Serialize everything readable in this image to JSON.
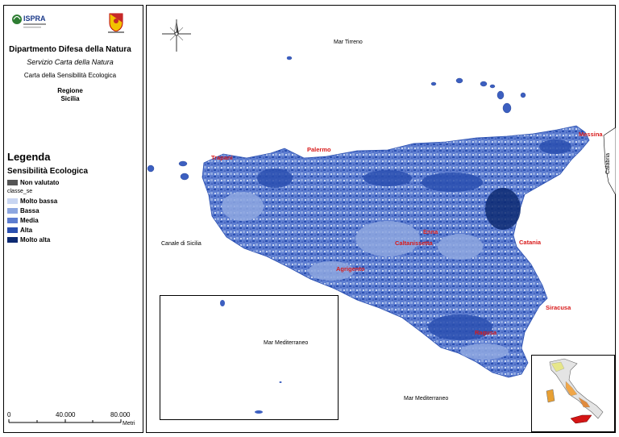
{
  "header": {
    "department": "Dipartmento Difesa della Natura",
    "service": "Servizio Carta della Natura",
    "map_title": "Carta della Sensibilità Ecologica",
    "region_label": "Regione",
    "region_name": "Sicilia",
    "ispra_logo_text": "ISPRA",
    "region_logo_text": "Regione Siciliana"
  },
  "legend": {
    "title": "Legenda",
    "subtitle": "Sensibilità Ecologica",
    "items": [
      {
        "label": "Non valutato",
        "color": "#555555"
      },
      {
        "label": "classe_se",
        "color": null
      },
      {
        "label": "Molto bassa",
        "color": "#c9d6f2"
      },
      {
        "label": "Bassa",
        "color": "#8ea7e0"
      },
      {
        "label": "Media",
        "color": "#5d7dd0"
      },
      {
        "label": "Alta",
        "color": "#2a4fb0"
      },
      {
        "label": "Molto alta",
        "color": "#0d2a72"
      }
    ]
  },
  "scale": {
    "t0": "0",
    "t1": "40.000",
    "t2": "80.000",
    "unit": "Metri"
  },
  "seas": {
    "tirreno": "Mar Tirreno",
    "sicilia_channel": "Canale di Sicilia",
    "mediterraneo_inset": "Mar Mediterraneo",
    "mediterraneo": "Mar Mediterraneo",
    "calabria": "Calabria"
  },
  "cities": {
    "trapani": "Trapani",
    "palermo": "Palermo",
    "messina": "Messina",
    "enna": "Enna",
    "caltanissetta": "Caltanissetta",
    "catania": "Catania",
    "agrigento": "Agrigento",
    "siracusa": "Siracusa",
    "ragusa": "Ragusa"
  }
}
